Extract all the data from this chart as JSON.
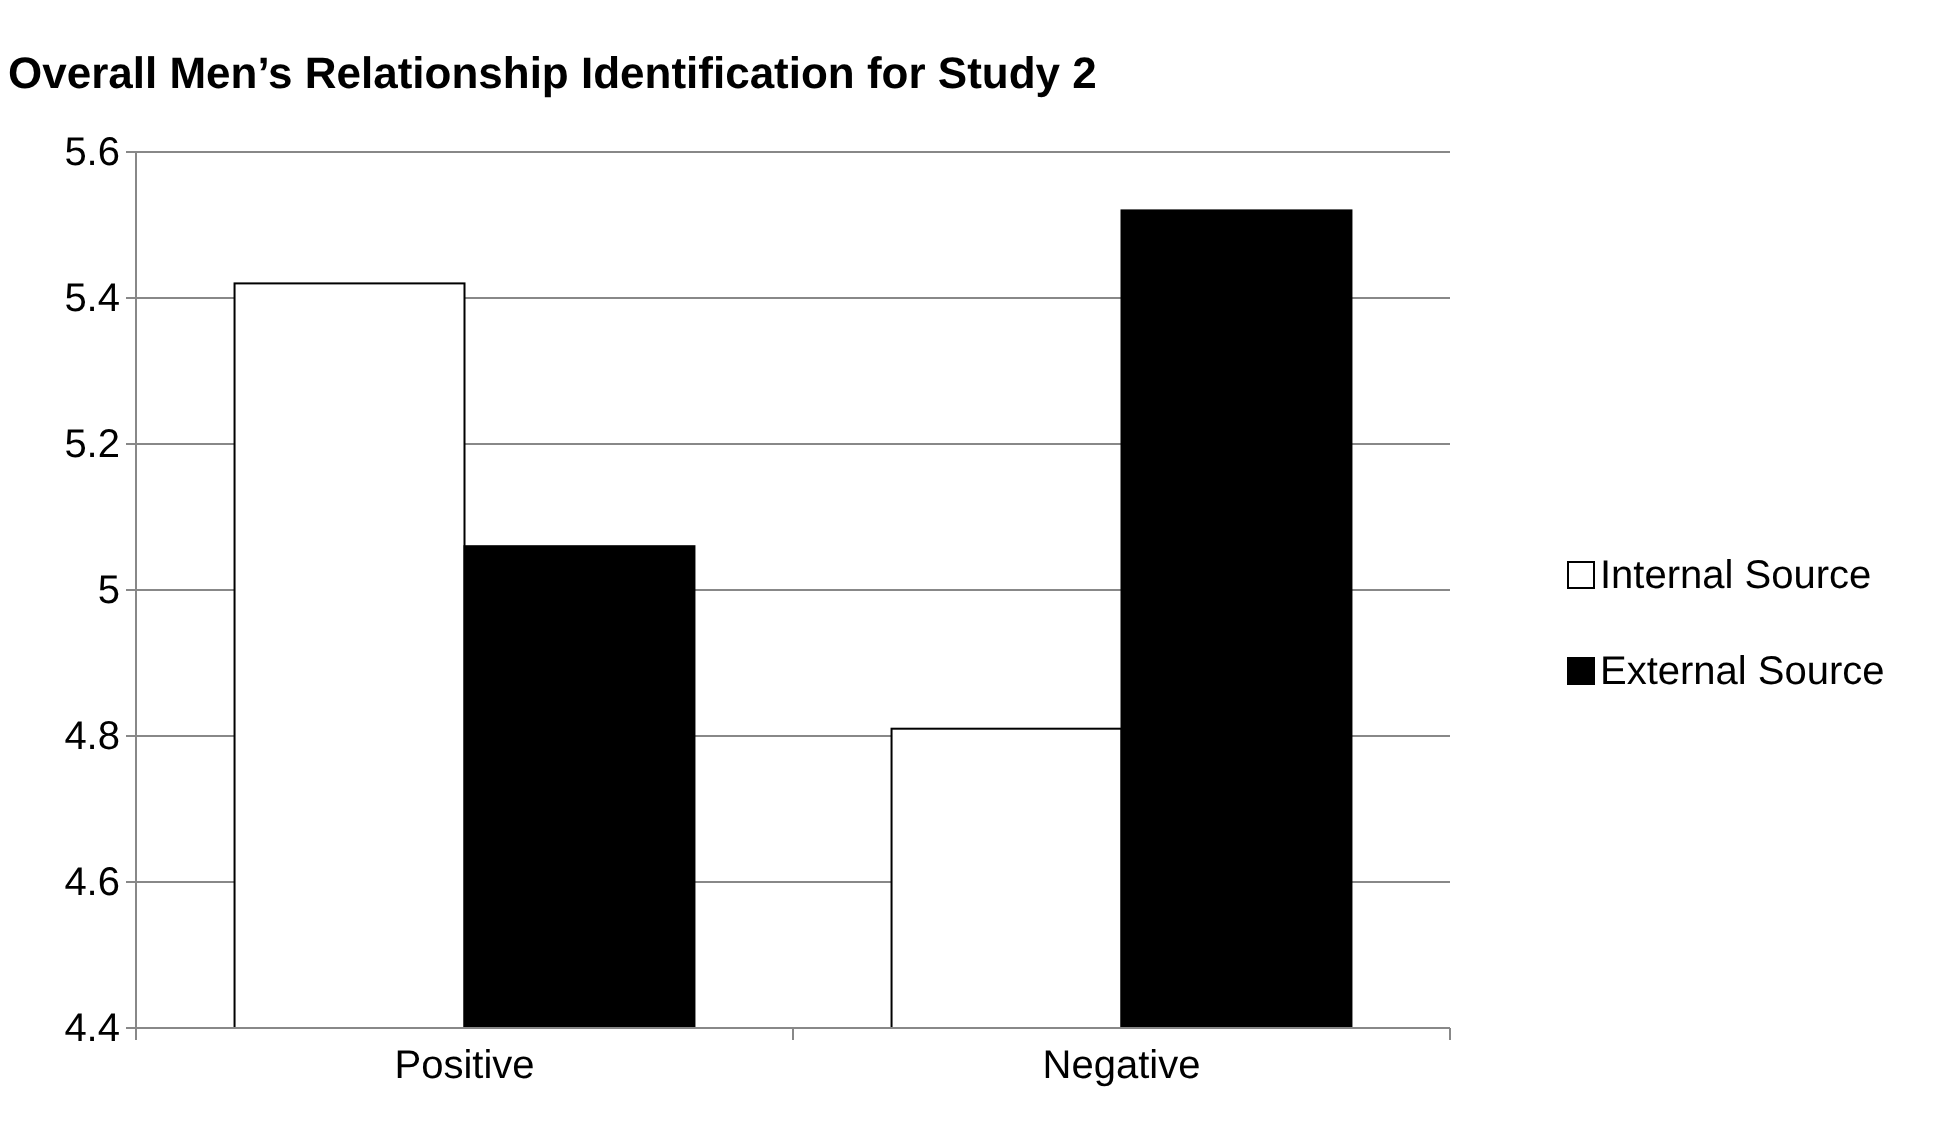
{
  "chart_data": {
    "type": "bar",
    "title": "Overall Men’s Relationship Identification for Study 2",
    "categories": [
      "Positive",
      "Negative"
    ],
    "series": [
      {
        "name": "Internal Source",
        "color": "#ffffff",
        "values": [
          5.42,
          4.81
        ]
      },
      {
        "name": "External Source",
        "color": "#000000",
        "values": [
          5.06,
          5.52
        ]
      }
    ],
    "ylim": [
      4.4,
      5.6
    ],
    "yticks": [
      4.4,
      4.6,
      4.8,
      5,
      5.2,
      5.4,
      5.6
    ],
    "grid": "y",
    "legend": "right"
  }
}
